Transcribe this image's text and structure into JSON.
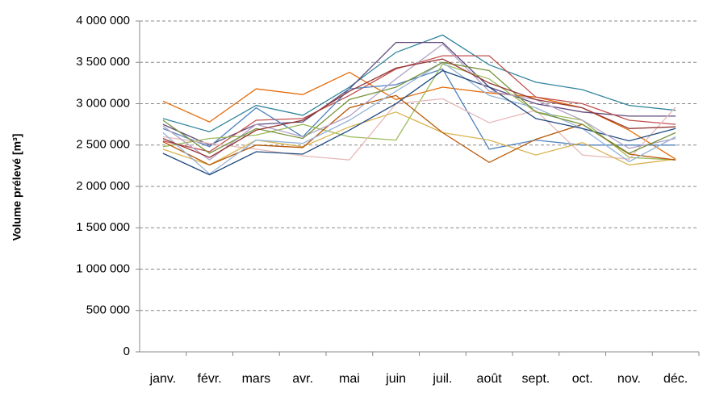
{
  "chart_data": {
    "type": "line",
    "y_label": "Volume prélevé [m³]",
    "categories": [
      "janv.",
      "févr.",
      "mars",
      "avr.",
      "mai",
      "juin",
      "juil.",
      "août",
      "sept.",
      "oct.",
      "nov.",
      "déc."
    ],
    "ylim": [
      0,
      4000000
    ],
    "yticks": [
      0,
      {
        "value": 500000,
        "label": "500 000"
      },
      {
        "value": 1000000,
        "label": "1 000 000"
      },
      {
        "value": 1500000,
        "label": "1 500 000"
      },
      {
        "value": 2000000,
        "label": "2 000 000"
      },
      {
        "value": 2500000,
        "label": "2 500 000"
      },
      {
        "value": 3000000,
        "label": "3 000 000"
      },
      {
        "value": 3500000,
        "label": "3 500 000"
      },
      {
        "value": 4000000,
        "label": "4 000 000"
      }
    ],
    "grid": true,
    "series": [
      {
        "color": "#e46c0a",
        "values": [
          3030000,
          2780000,
          3180000,
          3110000,
          3380000,
          3050000,
          3200000,
          3130000,
          3080000,
          2950000,
          2680000,
          2330000
        ]
      },
      {
        "color": "#31859c",
        "values": [
          2820000,
          2660000,
          2980000,
          2860000,
          3200000,
          3620000,
          3830000,
          3470000,
          3260000,
          3170000,
          2980000,
          2920000
        ]
      },
      {
        "color": "#5f497a",
        "values": [
          2750000,
          2500000,
          2750000,
          2780000,
          3180000,
          3740000,
          3740000,
          3200000,
          3000000,
          2900000,
          2850000,
          2850000
        ]
      },
      {
        "color": "#c0504d",
        "values": [
          2550000,
          2420000,
          2800000,
          2820000,
          3100000,
          3420000,
          3580000,
          3580000,
          3080000,
          3000000,
          2800000,
          2750000
        ]
      },
      {
        "color": "#4f81bd",
        "values": [
          2700000,
          2480000,
          2950000,
          2600000,
          3180000,
          3230000,
          3420000,
          2450000,
          2560000,
          2500000,
          2500000,
          2500000
        ]
      },
      {
        "color": "#9bbb59",
        "values": [
          2480000,
          2580000,
          2620000,
          2750000,
          2600000,
          2560000,
          3480000,
          3300000,
          2900000,
          2800000,
          2350000,
          2320000
        ]
      },
      {
        "color": "#e6b9b8",
        "values": [
          2600000,
          2520000,
          2450000,
          2370000,
          2320000,
          3000000,
          3060000,
          2770000,
          2920000,
          2380000,
          2330000,
          2960000
        ]
      },
      {
        "color": "#d8b451",
        "values": [
          2450000,
          2260000,
          2560000,
          2480000,
          2720000,
          2900000,
          2650000,
          2560000,
          2380000,
          2530000,
          2260000,
          2330000
        ]
      },
      {
        "color": "#b65708",
        "values": [
          2540000,
          2260000,
          2500000,
          2470000,
          2950000,
          3100000,
          2650000,
          2290000,
          2570000,
          2750000,
          2390000,
          2320000
        ]
      },
      {
        "color": "#95b3d7",
        "values": [
          2650000,
          2150000,
          2560000,
          2520000,
          2800000,
          3150000,
          3500000,
          3100000,
          2950000,
          2700000,
          2300000,
          2600000
        ]
      },
      {
        "color": "#1f497d",
        "values": [
          2400000,
          2140000,
          2420000,
          2390000,
          2680000,
          3000000,
          3400000,
          3200000,
          2820000,
          2700000,
          2550000,
          2700000
        ]
      },
      {
        "color": "#b3a2c7",
        "values": [
          2730000,
          2320000,
          2750000,
          2600000,
          2850000,
          3300000,
          3720000,
          3150000,
          3050000,
          2800000,
          2460000,
          2580000
        ]
      },
      {
        "color": "#77933c",
        "values": [
          2800000,
          2400000,
          2700000,
          2580000,
          3050000,
          3200000,
          3500000,
          3400000,
          2900000,
          2750000,
          2400000,
          2650000
        ]
      },
      {
        "color": "#943634",
        "values": [
          2580000,
          2350000,
          2680000,
          2800000,
          3150000,
          3430000,
          3540000,
          3250000,
          3050000,
          2950000,
          2700000,
          2720000
        ]
      }
    ]
  }
}
